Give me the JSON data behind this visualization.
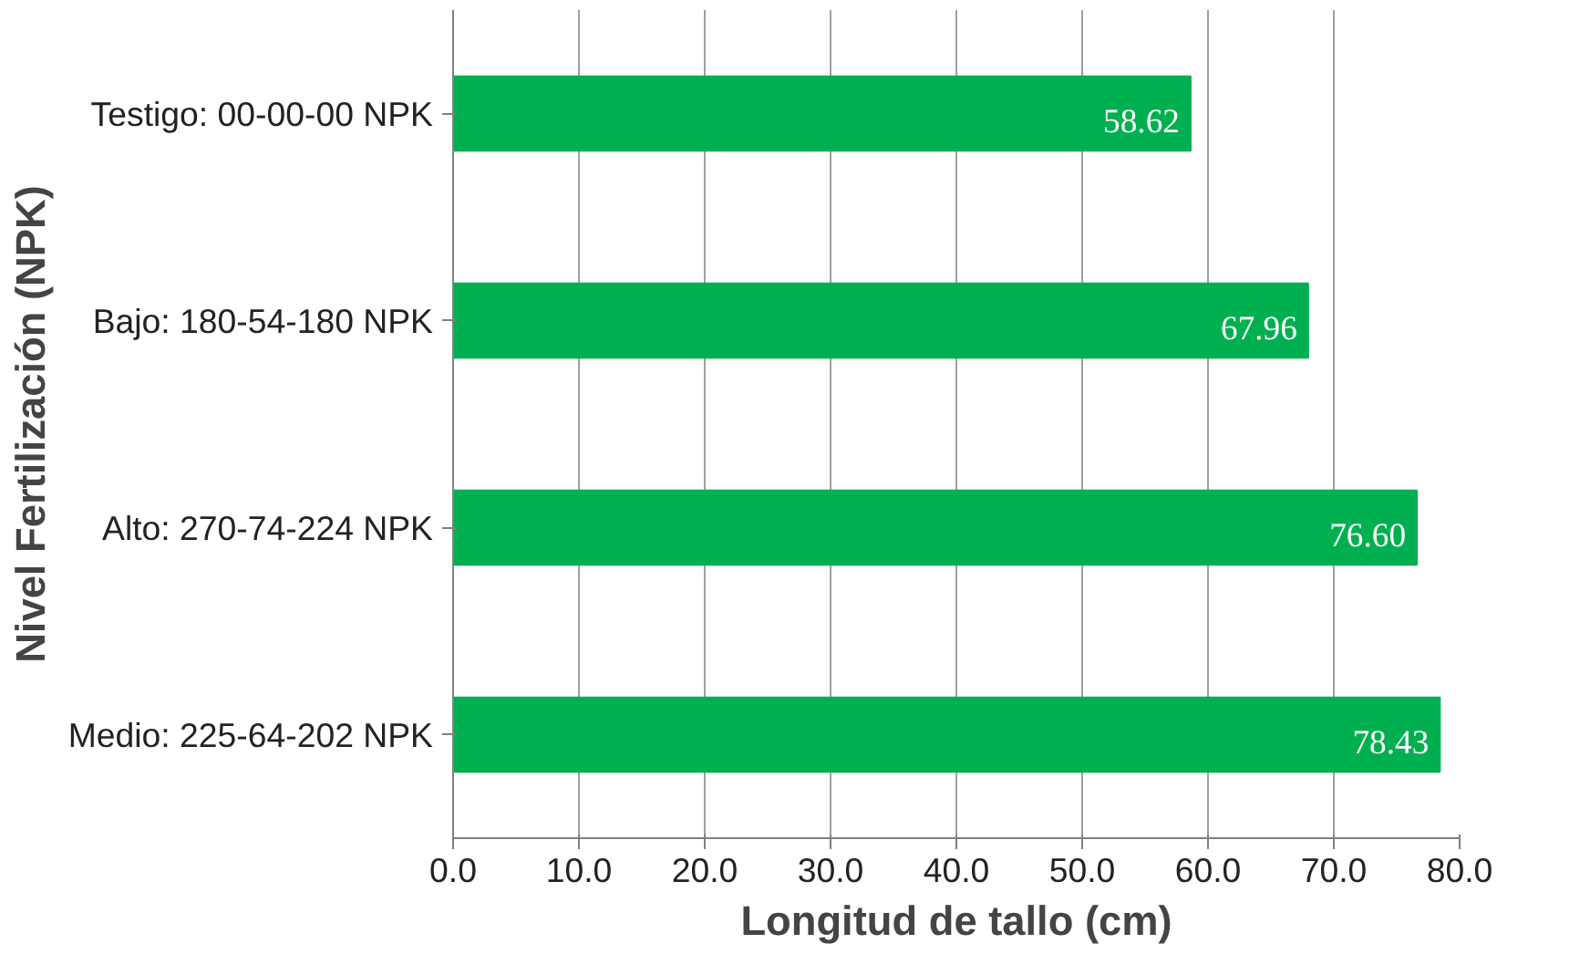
{
  "chart_data": {
    "type": "bar",
    "orientation": "horizontal",
    "xlabel": "Longitud de tallo (cm)",
    "ylabel": "Nivel Fertilización (NPK)",
    "categories": [
      "Testigo: 00-00-00 NPK",
      "Bajo: 180-54-180 NPK",
      "Alto: 270-74-224 NPK",
      "Medio: 225-64-202 NPK"
    ],
    "values": [
      58.62,
      67.96,
      76.6,
      78.43
    ],
    "value_labels": [
      "58.62",
      "67.96",
      "76.60",
      "78.43"
    ],
    "color": "#00b050",
    "xlim": [
      0,
      80
    ],
    "xticks": [
      {
        "value": 0,
        "label": "0.0"
      },
      {
        "value": 10,
        "label": "10.0"
      },
      {
        "value": 20,
        "label": "20.0"
      },
      {
        "value": 30,
        "label": "30.0"
      },
      {
        "value": 40,
        "label": "40.0"
      },
      {
        "value": 50,
        "label": "50.0"
      },
      {
        "value": 60,
        "label": "60.0"
      },
      {
        "value": 70,
        "label": "70.0"
      },
      {
        "value": 80,
        "label": "80.0"
      }
    ],
    "grid": "x"
  }
}
